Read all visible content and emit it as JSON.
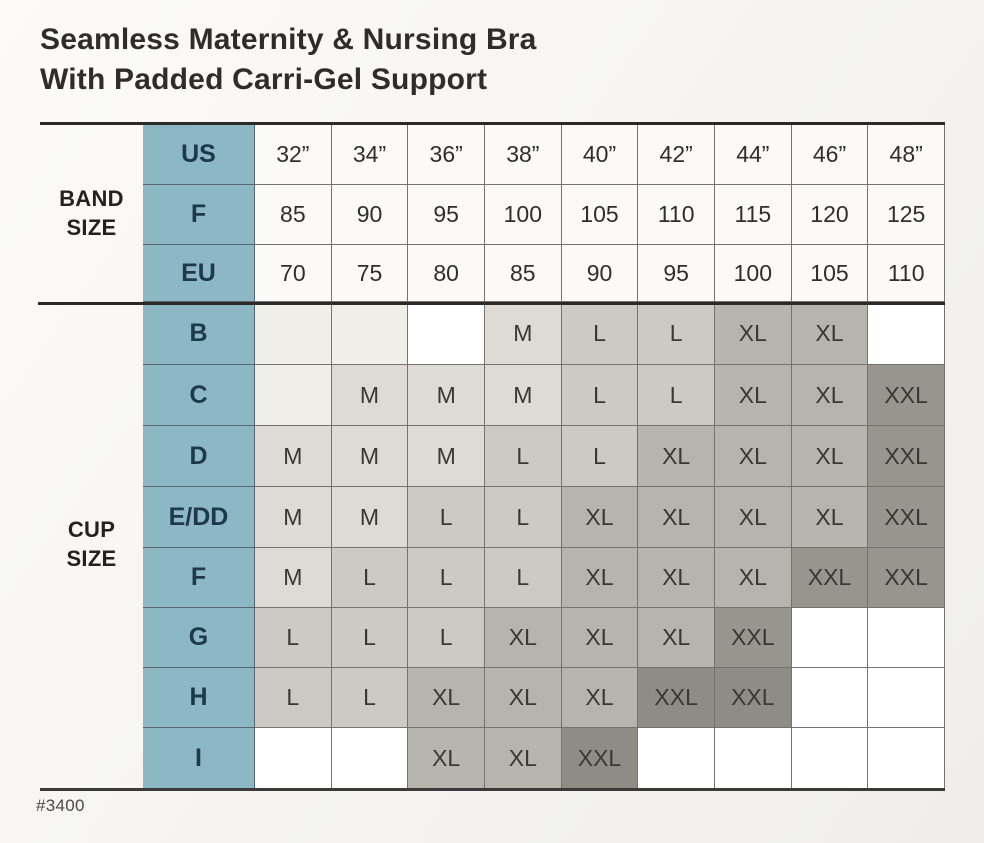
{
  "title": {
    "line1": "Seamless Maternity & Nursing Bra",
    "line2": "With Padded Carri-Gel Support"
  },
  "sections": {
    "band_label": "BAND\nSIZE",
    "cup_label": "CUP\nSIZE"
  },
  "footnote": "#3400",
  "colors": {
    "header_blue": "#8cb7c4",
    "header_text": "#1d3a49",
    "band_cell": "#fbfaf7",
    "ivory": "#f0eee8",
    "white": "#ffffff",
    "m": "#dedbd4",
    "l": "#cdcac3",
    "xl": "#b7b4ad",
    "xxl": "#98958d",
    "thick_line": "#2b2a28",
    "grid_line": "#74736f"
  },
  "chart_data": {
    "type": "table",
    "band_rows": [
      {
        "header": "US",
        "values": [
          "32”",
          "34”",
          "36”",
          "38”",
          "40”",
          "42”",
          "44”",
          "46”",
          "48”"
        ]
      },
      {
        "header": "F",
        "values": [
          "85",
          "90",
          "95",
          "100",
          "105",
          "110",
          "115",
          "120",
          "125"
        ]
      },
      {
        "header": "EU",
        "values": [
          "70",
          "75",
          "80",
          "85",
          "90",
          "95",
          "100",
          "105",
          "110"
        ]
      }
    ],
    "cup_rows": [
      {
        "header": "B",
        "cells": [
          {
            "label": "",
            "tone": "ivory"
          },
          {
            "label": "",
            "tone": "ivory"
          },
          {
            "label": "",
            "tone": "white"
          },
          {
            "label": "M",
            "tone": "m"
          },
          {
            "label": "L",
            "tone": "l"
          },
          {
            "label": "L",
            "tone": "l"
          },
          {
            "label": "XL",
            "tone": "xl"
          },
          {
            "label": "XL",
            "tone": "xl"
          },
          {
            "label": "",
            "tone": "white"
          }
        ]
      },
      {
        "header": "C",
        "cells": [
          {
            "label": "",
            "tone": "ivory"
          },
          {
            "label": "M",
            "tone": "m"
          },
          {
            "label": "M",
            "tone": "m"
          },
          {
            "label": "M",
            "tone": "m"
          },
          {
            "label": "L",
            "tone": "l"
          },
          {
            "label": "L",
            "tone": "l"
          },
          {
            "label": "XL",
            "tone": "xl"
          },
          {
            "label": "XL",
            "tone": "xl"
          },
          {
            "label": "XXL",
            "tone": "xxl"
          }
        ]
      },
      {
        "header": "D",
        "cells": [
          {
            "label": "M",
            "tone": "m"
          },
          {
            "label": "M",
            "tone": "m"
          },
          {
            "label": "M",
            "tone": "m"
          },
          {
            "label": "L",
            "tone": "l"
          },
          {
            "label": "L",
            "tone": "l"
          },
          {
            "label": "XL",
            "tone": "xl"
          },
          {
            "label": "XL",
            "tone": "xl"
          },
          {
            "label": "XL",
            "tone": "xl"
          },
          {
            "label": "XXL",
            "tone": "xxl"
          }
        ]
      },
      {
        "header": "E/DD",
        "cells": [
          {
            "label": "M",
            "tone": "m"
          },
          {
            "label": "M",
            "tone": "m"
          },
          {
            "label": "L",
            "tone": "l"
          },
          {
            "label": "L",
            "tone": "l"
          },
          {
            "label": "XL",
            "tone": "xl"
          },
          {
            "label": "XL",
            "tone": "xl"
          },
          {
            "label": "XL",
            "tone": "xl"
          },
          {
            "label": "XL",
            "tone": "xl"
          },
          {
            "label": "XXL",
            "tone": "xxl"
          }
        ]
      },
      {
        "header": "F",
        "cells": [
          {
            "label": "M",
            "tone": "m"
          },
          {
            "label": "L",
            "tone": "l"
          },
          {
            "label": "L",
            "tone": "l"
          },
          {
            "label": "L",
            "tone": "l"
          },
          {
            "label": "XL",
            "tone": "xl"
          },
          {
            "label": "XL",
            "tone": "xl"
          },
          {
            "label": "XL",
            "tone": "xl"
          },
          {
            "label": "XXL",
            "tone": "xxl"
          },
          {
            "label": "XXL",
            "tone": "xxl"
          }
        ]
      },
      {
        "header": "G",
        "cells": [
          {
            "label": "L",
            "tone": "l"
          },
          {
            "label": "L",
            "tone": "l"
          },
          {
            "label": "L",
            "tone": "l"
          },
          {
            "label": "XL",
            "tone": "xl"
          },
          {
            "label": "XL",
            "tone": "xl"
          },
          {
            "label": "XL",
            "tone": "xl"
          },
          {
            "label": "XXL",
            "tone": "xxl"
          },
          {
            "label": "",
            "tone": "white"
          },
          {
            "label": "",
            "tone": "white"
          }
        ]
      },
      {
        "header": "H",
        "cells": [
          {
            "label": "L",
            "tone": "l"
          },
          {
            "label": "L",
            "tone": "l"
          },
          {
            "label": "XL",
            "tone": "xl"
          },
          {
            "label": "XL",
            "tone": "xl"
          },
          {
            "label": "XL",
            "tone": "xl"
          },
          {
            "label": "XXL",
            "tone": "xxx_dark"
          },
          {
            "label": "XXL",
            "tone": "xxx_dark"
          },
          {
            "label": "",
            "tone": "white"
          },
          {
            "label": "",
            "tone": "white"
          }
        ]
      },
      {
        "header": "I",
        "cells": [
          {
            "label": "",
            "tone": "white"
          },
          {
            "label": "",
            "tone": "white"
          },
          {
            "label": "XL",
            "tone": "xl"
          },
          {
            "label": "XL",
            "tone": "xl"
          },
          {
            "label": "XXL",
            "tone": "xxx_dark"
          },
          {
            "label": "",
            "tone": "white"
          },
          {
            "label": "",
            "tone": "white"
          },
          {
            "label": "",
            "tone": "white"
          },
          {
            "label": "",
            "tone": "white"
          }
        ]
      }
    ]
  }
}
